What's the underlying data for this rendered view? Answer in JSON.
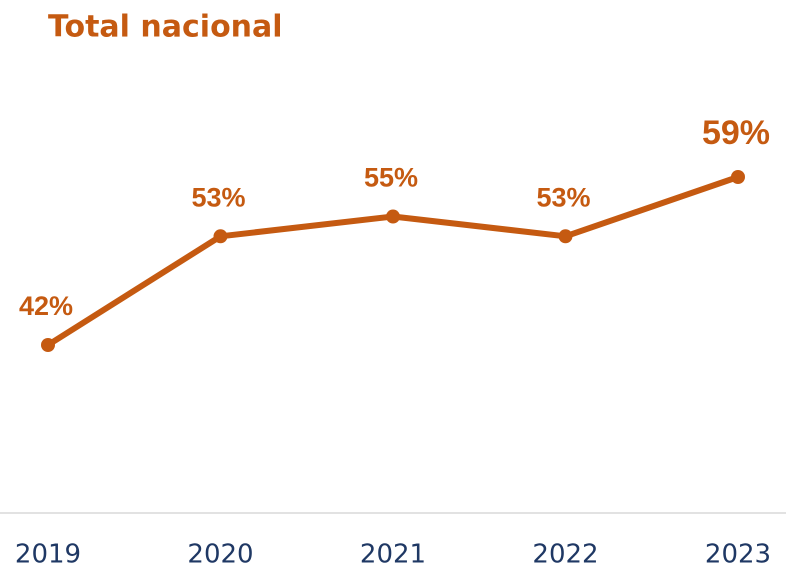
{
  "chart_data": {
    "type": "line",
    "title": "Total nacional",
    "categories": [
      "2019",
      "2020",
      "2021",
      "2022",
      "2023"
    ],
    "values": [
      42,
      53,
      55,
      53,
      59
    ],
    "value_labels": [
      "42%",
      "53%",
      "55%",
      "53%",
      "59%"
    ],
    "color": "#c55a11"
  }
}
